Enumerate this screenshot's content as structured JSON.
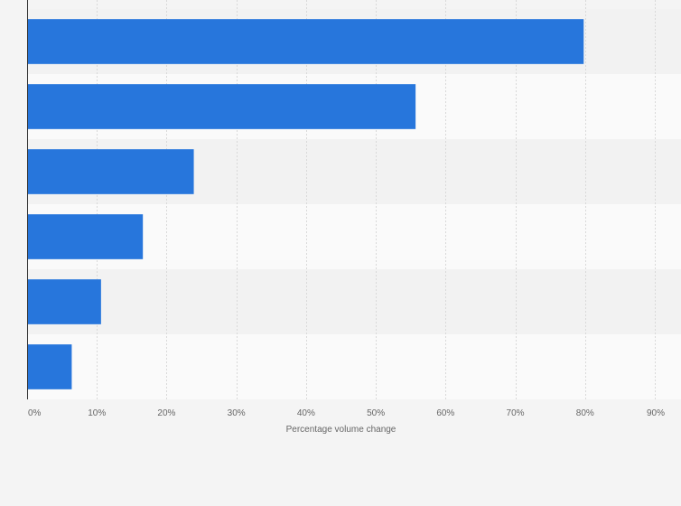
{
  "chart_data": {
    "type": "bar",
    "orientation": "horizontal",
    "title": "",
    "xlabel": "Percentage volume change",
    "ylabel": "",
    "categories": [
      "",
      "",
      "",
      "",
      "",
      ""
    ],
    "values": [
      79.8,
      55.7,
      23.9,
      16.6,
      10.6,
      6.4
    ],
    "xlim": [
      0,
      90
    ],
    "x_ticks": [
      "0%",
      "10%",
      "20%",
      "30%",
      "40%",
      "50%",
      "60%",
      "70%",
      "80%",
      "90%"
    ],
    "grid": true,
    "legend": "none",
    "colors": {
      "bar": "#2776dc",
      "band_dark": "#f2f2f2",
      "band_light": "#fafafa",
      "grid": "#d9d9d9",
      "axis": "#333333",
      "text": "#666666",
      "background": "#f4f4f4"
    }
  }
}
